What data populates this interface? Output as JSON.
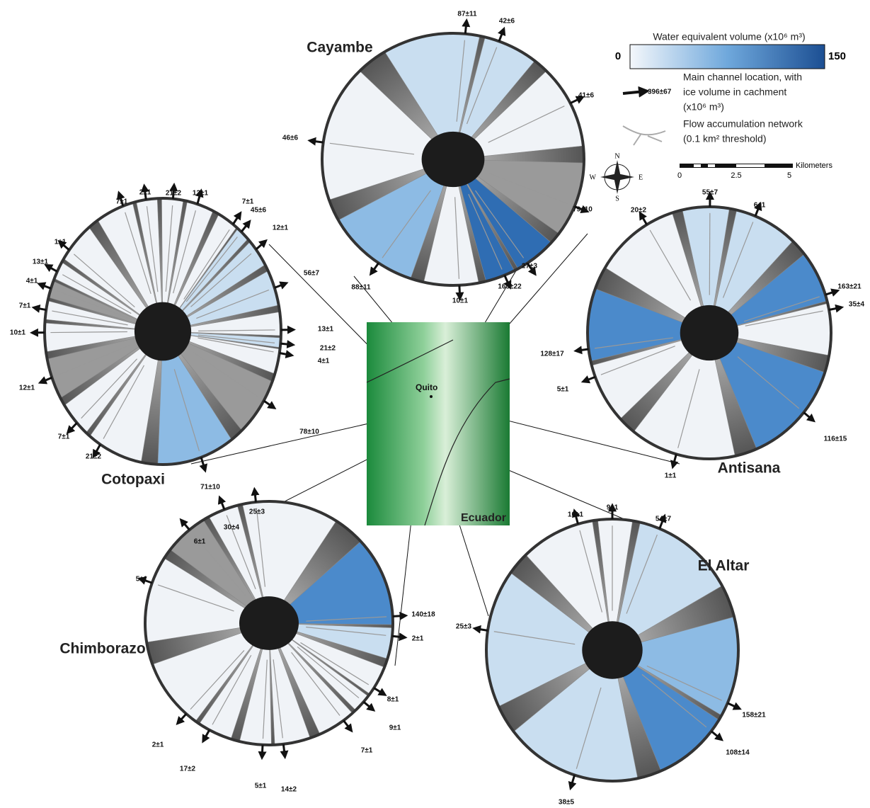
{
  "legend": {
    "title": "Water equivalent volume (x10⁶ m³)",
    "min": "0",
    "max": "150",
    "channel_example": "396±67",
    "channel_text": [
      "Main channel location, with",
      "ice volume in cachment",
      "(x10⁶ m³)"
    ],
    "network_text": [
      "Flow accumulation network",
      "(0.1 km² threshold)"
    ],
    "compass": [
      "N",
      "E",
      "S",
      "W"
    ],
    "scale_ticks": [
      "0",
      "2.5",
      "5"
    ],
    "scale_unit": "Kilometers"
  },
  "map": {
    "city": "Quito",
    "country": "Ecuador"
  },
  "volcanoes": [
    {
      "name": "Cayambe",
      "channels": [
        "87±11",
        "42±6",
        "41±6",
        "46±6",
        "79±10",
        "27±3",
        "165±22",
        "10±1",
        "88±11"
      ]
    },
    {
      "name": "Cotopaxi",
      "channels": [
        "2±1",
        "7±1",
        "21±2",
        "13±1",
        "7±1",
        "45±6",
        "12±1",
        "1±1",
        "13±1",
        "4±1",
        "7±1",
        "10±1",
        "13±1",
        "21±2",
        "4±1",
        "12±1",
        "56±7",
        "78±10",
        "7±1",
        "21±2",
        "71±10"
      ]
    },
    {
      "name": "Antisana",
      "channels": [
        "20±2",
        "55±7",
        "6±1",
        "163±21",
        "35±4",
        "128±17",
        "5±1",
        "116±15",
        "1±1"
      ]
    },
    {
      "name": "Chimborazo",
      "channels": [
        "30±4",
        "25±3",
        "6±1",
        "5±1",
        "140±18",
        "2±1",
        "8±1",
        "9±1",
        "7±1",
        "2±1",
        "17±2",
        "5±1",
        "14±2"
      ]
    },
    {
      "name": "El Altar",
      "channels": [
        "10±1",
        "9±1",
        "54±7",
        "25±3",
        "158±21",
        "108±14",
        "38±5"
      ]
    }
  ]
}
